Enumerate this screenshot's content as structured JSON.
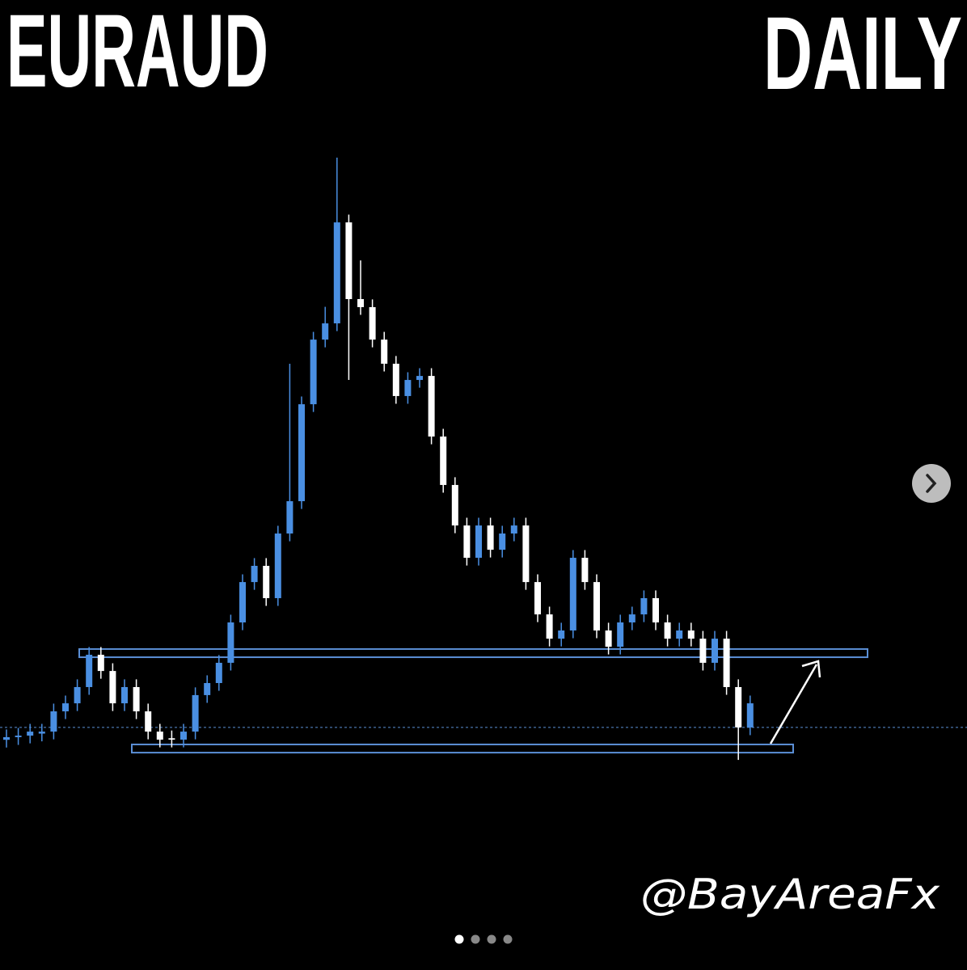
{
  "chart_data": {
    "type": "candlestick",
    "title": "EURAUD",
    "subtitle": "DAILY",
    "annotation": "@BayAreaFx",
    "up_color": "#4a8fe2",
    "down_color": "#ffffff",
    "zone_color": "#5b8fd6",
    "ylim": [
      1.5,
      1.96
    ],
    "open": [
      1.56,
      1.5617,
      1.5627,
      1.564,
      1.5653,
      1.5784,
      1.5836,
      1.5941,
      1.615,
      1.6045,
      1.5836,
      1.5941,
      1.5784,
      1.5653,
      1.561,
      1.5601,
      1.5653,
      1.5889,
      1.5967,
      1.6098,
      1.6359,
      1.662,
      1.6725,
      1.6516,
      1.6934,
      1.7143,
      1.777,
      1.8188,
      1.8293,
      1.8946,
      1.845,
      1.8398,
      1.8188,
      1.8032,
      1.7823,
      1.7927,
      1.7953,
      1.7561,
      1.7248,
      1.6986,
      1.6777,
      1.6986,
      1.6829,
      1.6934,
      1.6986,
      1.662,
      1.6411,
      1.6254,
      1.6307,
      1.6777,
      1.662,
      1.6307,
      1.6202,
      1.6359,
      1.6411,
      1.6516,
      1.6359,
      1.6254,
      1.6307,
      1.6254,
      1.6098,
      1.6254,
      1.5941,
      1.568
    ],
    "high": [
      1.5667,
      1.5677,
      1.5703,
      1.5703,
      1.5834,
      1.5886,
      1.5991,
      1.62,
      1.62,
      1.6095,
      1.5991,
      1.5991,
      1.5834,
      1.5703,
      1.566,
      1.5703,
      1.5939,
      1.6017,
      1.6148,
      1.6409,
      1.667,
      1.6775,
      1.6775,
      1.6984,
      1.8032,
      1.782,
      1.8238,
      1.84,
      1.9365,
      1.8996,
      1.87,
      1.8448,
      1.8238,
      1.8082,
      1.7977,
      1.8003,
      1.8003,
      1.7611,
      1.7298,
      1.7036,
      1.7036,
      1.7036,
      1.6984,
      1.7036,
      1.7036,
      1.667,
      1.6461,
      1.6357,
      1.6827,
      1.6827,
      1.667,
      1.6357,
      1.6409,
      1.6461,
      1.6566,
      1.6566,
      1.6409,
      1.6357,
      1.6357,
      1.6304,
      1.6304,
      1.6304,
      1.5991,
      1.5886
    ],
    "low": [
      1.555,
      1.5567,
      1.5577,
      1.559,
      1.5603,
      1.5734,
      1.5786,
      1.5891,
      1.5995,
      1.5786,
      1.5786,
      1.5734,
      1.5603,
      1.5551,
      1.5551,
      1.5551,
      1.5603,
      1.5839,
      1.5917,
      1.6048,
      1.6309,
      1.657,
      1.6466,
      1.6466,
      1.6884,
      1.7093,
      1.772,
      1.8138,
      1.8243,
      1.7927,
      1.8348,
      1.8138,
      1.7982,
      1.7773,
      1.7773,
      1.7877,
      1.7511,
      1.7198,
      1.6936,
      1.6727,
      1.6727,
      1.6779,
      1.6779,
      1.6884,
      1.657,
      1.6361,
      1.6204,
      1.6204,
      1.6257,
      1.657,
      1.6257,
      1.6152,
      1.6152,
      1.6309,
      1.6361,
      1.6309,
      1.6204,
      1.6204,
      1.6204,
      1.6048,
      1.6048,
      1.5891,
      1.547,
      1.563
    ],
    "close": [
      1.5617,
      1.5627,
      1.5653,
      1.5653,
      1.5784,
      1.5836,
      1.5941,
      1.615,
      1.6045,
      1.5836,
      1.5941,
      1.5784,
      1.5653,
      1.5601,
      1.5601,
      1.5653,
      1.5889,
      1.5967,
      1.6098,
      1.6359,
      1.662,
      1.6725,
      1.6516,
      1.6934,
      1.7143,
      1.777,
      1.8188,
      1.8293,
      1.8946,
      1.845,
      1.8398,
      1.8188,
      1.8032,
      1.7823,
      1.7927,
      1.7953,
      1.7561,
      1.7248,
      1.6986,
      1.6777,
      1.6986,
      1.6829,
      1.6934,
      1.6986,
      1.662,
      1.6411,
      1.6254,
      1.6307,
      1.6777,
      1.662,
      1.6307,
      1.6202,
      1.6359,
      1.6411,
      1.6516,
      1.6359,
      1.6254,
      1.6307,
      1.6254,
      1.6098,
      1.6254,
      1.5941,
      1.568,
      1.5836
    ],
    "zones": [
      {
        "low": 1.6134,
        "high": 1.6187
      },
      {
        "low": 1.5517,
        "high": 1.557
      }
    ],
    "current_price": 1.568
  }
}
